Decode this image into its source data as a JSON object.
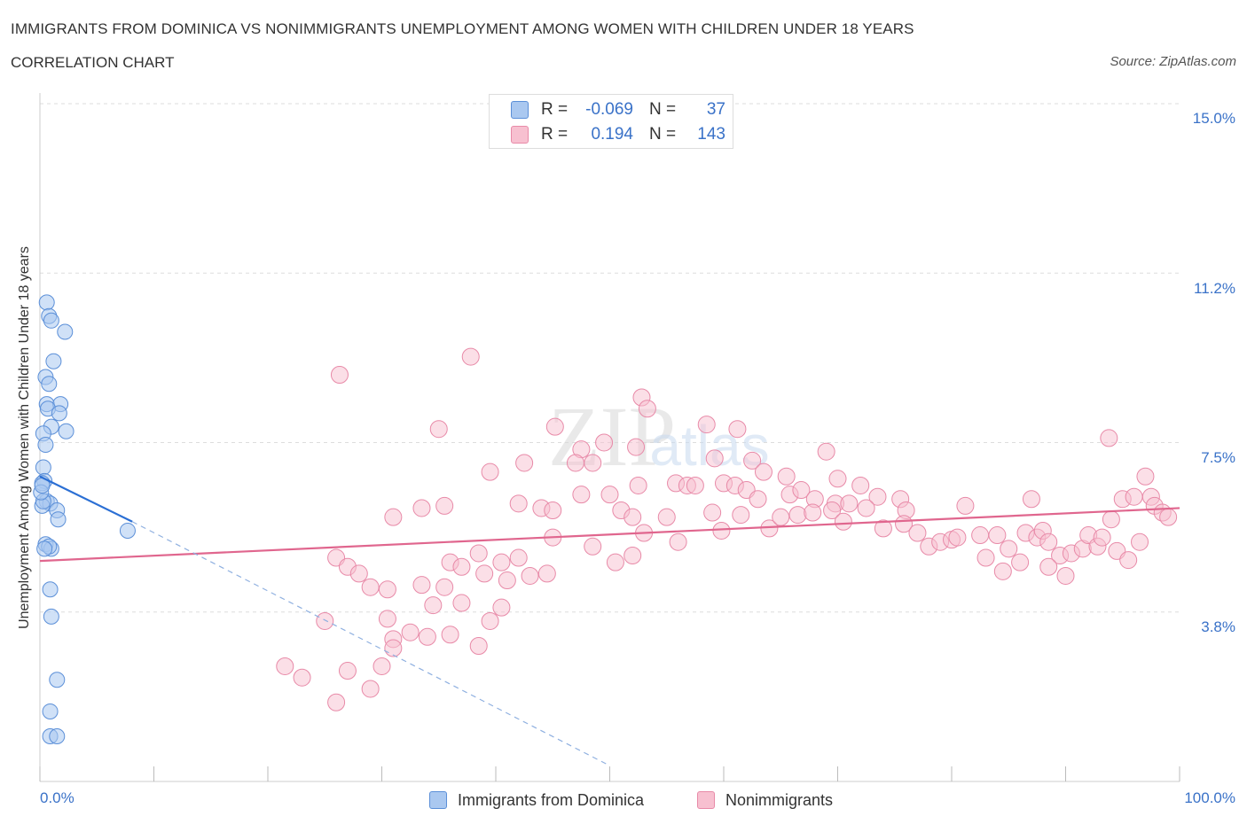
{
  "header": {
    "title": "IMMIGRANTS FROM DOMINICA VS NONIMMIGRANTS UNEMPLOYMENT AMONG WOMEN WITH CHILDREN UNDER 18 YEARS",
    "subtitle": "CORRELATION CHART",
    "source": "Source: ZipAtlas.com"
  },
  "legend": {
    "rows": [
      {
        "r_label": "R =",
        "r_value": "-0.069",
        "n_label": "N =",
        "n_value": "37"
      },
      {
        "r_label": "R =",
        "r_value": "0.194",
        "n_label": "N =",
        "n_value": "143"
      }
    ]
  },
  "bottom_legend": {
    "series1": "Immigrants from Dominica",
    "series2": "Nonimmigrants"
  },
  "axes": {
    "x_min_label": "0.0%",
    "x_max_label": "100.0%",
    "y_ticks": [
      "15.0%",
      "11.2%",
      "7.5%",
      "3.8%"
    ]
  },
  "colors": {
    "series1_fill": "#aac8f0",
    "series1_stroke": "#5b8fd8",
    "series1_line": "#2b6fd4",
    "series2_fill": "#f7c0d0",
    "series2_stroke": "#e88aa8",
    "series2_line": "#e0668e",
    "tick_text": "#3a72c8",
    "grid": "#dddddd"
  },
  "chart_data": {
    "type": "scatter",
    "title": "IMMIGRANTS FROM DOMINICA VS NONIMMIGRANTS UNEMPLOYMENT AMONG WOMEN WITH CHILDREN UNDER 18 YEARS",
    "xlabel": "",
    "ylabel": "Unemployment Among Women with Children Under 18 years",
    "xlim": [
      0,
      100
    ],
    "ylim": [
      0,
      15
    ],
    "grid": true,
    "legend_position": "top-center",
    "series": [
      {
        "name": "Immigrants from Dominica",
        "R": -0.069,
        "N": 37,
        "trend": {
          "x": [
            0,
            8.1
          ],
          "y": [
            6.75,
            5.75
          ]
        },
        "trend_extension": {
          "x": [
            8.1,
            50
          ],
          "y": [
            5.75,
            0.35
          ]
        },
        "points": [
          [
            0.6,
            10.6
          ],
          [
            0.8,
            10.3
          ],
          [
            1.0,
            10.2
          ],
          [
            2.2,
            9.95
          ],
          [
            1.2,
            9.3
          ],
          [
            0.5,
            8.95
          ],
          [
            0.8,
            8.8
          ],
          [
            0.6,
            8.35
          ],
          [
            1.8,
            8.35
          ],
          [
            0.7,
            8.25
          ],
          [
            1.7,
            8.15
          ],
          [
            1.0,
            7.85
          ],
          [
            2.3,
            7.75
          ],
          [
            0.3,
            7.7
          ],
          [
            0.5,
            7.45
          ],
          [
            0.3,
            6.95
          ],
          [
            0.4,
            6.65
          ],
          [
            0.2,
            6.6
          ],
          [
            0.6,
            6.2
          ],
          [
            0.9,
            6.15
          ],
          [
            0.2,
            6.1
          ],
          [
            0.3,
            6.2
          ],
          [
            1.5,
            6.0
          ],
          [
            1.6,
            5.8
          ],
          [
            7.7,
            5.55
          ],
          [
            0.5,
            5.25
          ],
          [
            1.0,
            5.15
          ],
          [
            0.8,
            5.2
          ],
          [
            0.4,
            5.15
          ],
          [
            0.9,
            4.25
          ],
          [
            1.0,
            3.65
          ],
          [
            1.5,
            2.25
          ],
          [
            0.9,
            1.55
          ],
          [
            0.9,
            1.0
          ],
          [
            1.5,
            1.0
          ],
          [
            0.1,
            6.4
          ],
          [
            0.2,
            6.55
          ]
        ]
      },
      {
        "name": "Nonimmigrants",
        "R": 0.194,
        "N": 143,
        "trend": {
          "x": [
            0,
            100
          ],
          "y": [
            4.88,
            6.05
          ]
        },
        "points": [
          [
            26.3,
            9.0
          ],
          [
            37.8,
            9.4
          ],
          [
            52.8,
            8.5
          ],
          [
            53.3,
            8.25
          ],
          [
            58.5,
            7.9
          ],
          [
            61.2,
            7.8
          ],
          [
            69.0,
            7.3
          ],
          [
            93.8,
            7.6
          ],
          [
            35.0,
            7.8
          ],
          [
            45.2,
            7.85
          ],
          [
            47.5,
            7.35
          ],
          [
            49.5,
            7.5
          ],
          [
            52.3,
            7.4
          ],
          [
            59.2,
            7.15
          ],
          [
            62.5,
            7.1
          ],
          [
            63.5,
            6.85
          ],
          [
            65.5,
            6.75
          ],
          [
            70.0,
            6.7
          ],
          [
            72.0,
            6.55
          ],
          [
            73.5,
            6.3
          ],
          [
            75.5,
            6.25
          ],
          [
            39.5,
            6.85
          ],
          [
            42.5,
            7.05
          ],
          [
            47.0,
            7.05
          ],
          [
            48.5,
            7.05
          ],
          [
            52.5,
            6.55
          ],
          [
            55.8,
            6.6
          ],
          [
            56.8,
            6.55
          ],
          [
            57.5,
            6.55
          ],
          [
            60.0,
            6.6
          ],
          [
            61.0,
            6.55
          ],
          [
            62.0,
            6.45
          ],
          [
            63.0,
            6.25
          ],
          [
            65.8,
            6.35
          ],
          [
            66.8,
            6.45
          ],
          [
            68.0,
            6.25
          ],
          [
            69.8,
            6.15
          ],
          [
            71.0,
            6.15
          ],
          [
            72.5,
            6.05
          ],
          [
            76.0,
            6.0
          ],
          [
            81.2,
            6.1
          ],
          [
            87.0,
            6.25
          ],
          [
            94.0,
            5.8
          ],
          [
            95.0,
            6.25
          ],
          [
            96.0,
            6.3
          ],
          [
            97.0,
            6.75
          ],
          [
            97.5,
            6.3
          ],
          [
            44.0,
            6.05
          ],
          [
            42.0,
            6.15
          ],
          [
            45.0,
            6.0
          ],
          [
            47.5,
            6.35
          ],
          [
            50.0,
            6.35
          ],
          [
            51.0,
            6.0
          ],
          [
            52.0,
            5.85
          ],
          [
            55.0,
            5.85
          ],
          [
            59.0,
            5.95
          ],
          [
            61.5,
            5.9
          ],
          [
            66.5,
            5.9
          ],
          [
            67.8,
            5.95
          ],
          [
            69.5,
            6.0
          ],
          [
            31.0,
            5.85
          ],
          [
            33.5,
            6.05
          ],
          [
            35.5,
            6.1
          ],
          [
            53.0,
            5.5
          ],
          [
            56.0,
            5.3
          ],
          [
            59.8,
            5.55
          ],
          [
            64.0,
            5.6
          ],
          [
            65.0,
            5.85
          ],
          [
            70.5,
            5.75
          ],
          [
            74.0,
            5.6
          ],
          [
            75.8,
            5.7
          ],
          [
            77.0,
            5.5
          ],
          [
            78.0,
            5.2
          ],
          [
            79.0,
            5.3
          ],
          [
            80.0,
            5.35
          ],
          [
            80.5,
            5.4
          ],
          [
            82.5,
            5.45
          ],
          [
            84.0,
            5.45
          ],
          [
            85.0,
            5.15
          ],
          [
            86.5,
            5.5
          ],
          [
            87.5,
            5.4
          ],
          [
            88.0,
            5.55
          ],
          [
            88.5,
            5.3
          ],
          [
            89.5,
            5.0
          ],
          [
            90.5,
            5.05
          ],
          [
            91.5,
            5.15
          ],
          [
            92.0,
            5.45
          ],
          [
            92.8,
            5.2
          ],
          [
            93.2,
            5.4
          ],
          [
            94.5,
            5.1
          ],
          [
            95.5,
            4.9
          ],
          [
            96.5,
            5.3
          ],
          [
            97.8,
            6.1
          ],
          [
            98.5,
            5.95
          ],
          [
            99.0,
            5.85
          ],
          [
            45.0,
            5.4
          ],
          [
            48.5,
            5.2
          ],
          [
            52.0,
            5.0
          ],
          [
            50.5,
            4.85
          ],
          [
            38.5,
            5.05
          ],
          [
            40.5,
            4.85
          ],
          [
            42.0,
            4.95
          ],
          [
            36.0,
            4.85
          ],
          [
            37.0,
            4.75
          ],
          [
            39.0,
            4.6
          ],
          [
            41.0,
            4.45
          ],
          [
            43.0,
            4.55
          ],
          [
            44.5,
            4.6
          ],
          [
            86.0,
            4.85
          ],
          [
            88.5,
            4.75
          ],
          [
            90.0,
            4.55
          ],
          [
            83.0,
            4.95
          ],
          [
            84.5,
            4.65
          ],
          [
            26.0,
            4.95
          ],
          [
            27.0,
            4.75
          ],
          [
            28.0,
            4.6
          ],
          [
            29.0,
            4.3
          ],
          [
            30.5,
            4.25
          ],
          [
            33.5,
            4.35
          ],
          [
            35.5,
            4.3
          ],
          [
            25.0,
            3.55
          ],
          [
            30.5,
            3.6
          ],
          [
            34.5,
            3.9
          ],
          [
            37.0,
            3.95
          ],
          [
            39.5,
            3.55
          ],
          [
            40.5,
            3.85
          ],
          [
            31.0,
            3.15
          ],
          [
            34.0,
            3.2
          ],
          [
            36.0,
            3.25
          ],
          [
            38.5,
            3.0
          ],
          [
            21.5,
            2.55
          ],
          [
            31.0,
            2.95
          ],
          [
            30.0,
            2.55
          ],
          [
            26.0,
            1.75
          ],
          [
            29.0,
            2.05
          ],
          [
            27.0,
            2.45
          ],
          [
            23.0,
            2.3
          ],
          [
            32.5,
            3.3
          ]
        ]
      }
    ]
  }
}
